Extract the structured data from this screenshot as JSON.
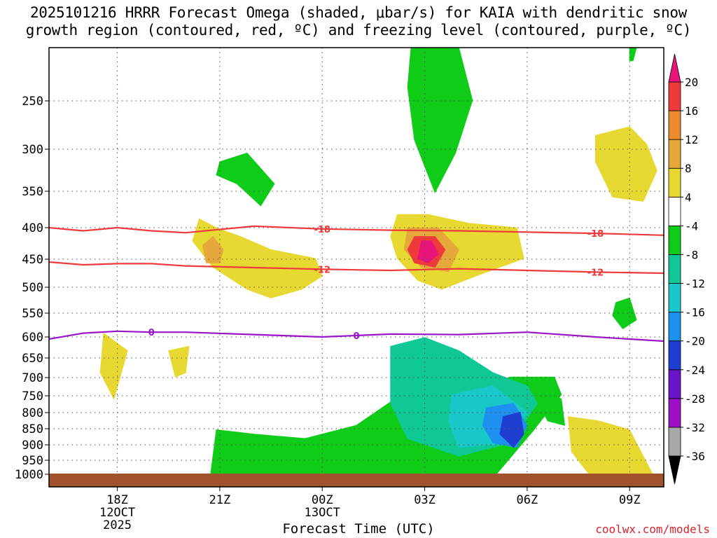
{
  "title": {
    "line1": "2025101216 HRRR Forecast Omega (shaded, μbar/s) for KAIA with dendritic snow",
    "line2": "growth region (contoured, red, ºC) and freezing level (contoured, purple, ºC)"
  },
  "chart_data": {
    "type": "time-height-contour",
    "xlabel": "Forecast Time (UTC)",
    "x_ticks": [
      {
        "hour": 18,
        "label": "18Z",
        "sub1": "12OCT",
        "sub2": "2025"
      },
      {
        "hour": 21,
        "label": "21Z",
        "sub1": "",
        "sub2": ""
      },
      {
        "hour": 24,
        "label": "00Z",
        "sub1": "13OCT",
        "sub2": ""
      },
      {
        "hour": 27,
        "label": "03Z",
        "sub1": "",
        "sub2": ""
      },
      {
        "hour": 30,
        "label": "06Z",
        "sub1": "",
        "sub2": ""
      },
      {
        "hour": 33,
        "label": "09Z",
        "sub1": "",
        "sub2": ""
      }
    ],
    "x_range_hours": [
      16,
      34
    ],
    "y_axis": "pressure (hPa)",
    "y_ticks": [
      250,
      300,
      350,
      400,
      450,
      500,
      550,
      600,
      650,
      700,
      750,
      800,
      850,
      900,
      950,
      1000
    ],
    "y_range_hpa": [
      200,
      1000
    ],
    "surface_hpa": 970,
    "colorbar": {
      "levels": [
        -36,
        -32,
        -28,
        -24,
        -20,
        -16,
        -12,
        -8,
        -4,
        4,
        8,
        12,
        16,
        20
      ],
      "colors": [
        "#000000",
        "#a8a8a8",
        "#9e0fc6",
        "#6a14c8",
        "#1e3ed2",
        "#1e90f0",
        "#18c8c8",
        "#10c896",
        "#0fcc18",
        "#ffffff",
        "#e8d832",
        "#e6a83a",
        "#ec8a2e",
        "#ee3a3a",
        "#e8147a"
      ]
    },
    "omega_regions": [
      {
        "label": "green",
        "color": "#0fcc18",
        "points": [
          [
            21.0,
            0.26
          ],
          [
            21.8,
            0.24
          ],
          [
            22.6,
            0.31
          ],
          [
            22.2,
            0.36
          ],
          [
            21.5,
            0.31
          ],
          [
            20.9,
            0.29
          ]
        ]
      },
      {
        "label": "green",
        "color": "#0fcc18",
        "points": [
          [
            26.6,
            0.0
          ],
          [
            28.0,
            0.0
          ],
          [
            28.4,
            0.12
          ],
          [
            27.9,
            0.24
          ],
          [
            27.3,
            0.33
          ],
          [
            26.7,
            0.21
          ],
          [
            26.5,
            0.09
          ]
        ]
      },
      {
        "label": "green",
        "color": "#0fcc18",
        "points": [
          [
            33.0,
            0.0
          ],
          [
            33.2,
            0.0
          ],
          [
            33.1,
            0.03
          ],
          [
            33.0,
            0.03
          ]
        ]
      },
      {
        "label": "green",
        "color": "#0fcc18",
        "points": [
          [
            20.7,
            0.99
          ],
          [
            20.9,
            0.87
          ],
          [
            22.0,
            0.88
          ],
          [
            23.5,
            0.89
          ],
          [
            25.0,
            0.86
          ],
          [
            26.5,
            0.78
          ],
          [
            28.0,
            0.79
          ],
          [
            29.5,
            0.75
          ],
          [
            30.8,
            0.75
          ],
          [
            31.0,
            0.79
          ],
          [
            30.2,
            0.87
          ],
          [
            29.0,
            0.98
          ]
        ]
      },
      {
        "label": "cyan",
        "color": "#10c896",
        "points": [
          [
            26.0,
            0.68
          ],
          [
            27.0,
            0.66
          ],
          [
            28.0,
            0.69
          ],
          [
            29.0,
            0.74
          ],
          [
            30.0,
            0.77
          ],
          [
            30.3,
            0.81
          ],
          [
            29.5,
            0.9
          ],
          [
            28.0,
            0.93
          ],
          [
            26.5,
            0.89
          ],
          [
            26.0,
            0.81
          ]
        ]
      },
      {
        "label": "teal",
        "color": "#18c8c8",
        "points": [
          [
            27.8,
            0.79
          ],
          [
            29.0,
            0.77
          ],
          [
            30.0,
            0.83
          ],
          [
            29.5,
            0.9
          ],
          [
            28.0,
            0.91
          ],
          [
            27.7,
            0.85
          ]
        ]
      },
      {
        "label": "blue",
        "color": "#1e90f0",
        "points": [
          [
            28.8,
            0.82
          ],
          [
            29.6,
            0.81
          ],
          [
            30.0,
            0.86
          ],
          [
            29.7,
            0.91
          ],
          [
            29.0,
            0.9
          ],
          [
            28.7,
            0.86
          ]
        ]
      },
      {
        "label": "dark blue",
        "color": "#1e3ed2",
        "points": [
          [
            29.3,
            0.84
          ],
          [
            29.8,
            0.83
          ],
          [
            29.9,
            0.88
          ],
          [
            29.6,
            0.91
          ],
          [
            29.2,
            0.88
          ]
        ]
      },
      {
        "label": "yellow",
        "color": "#e8d832",
        "points": [
          [
            20.4,
            0.39
          ],
          [
            20.9,
            0.41
          ],
          [
            21.6,
            0.43
          ],
          [
            22.5,
            0.46
          ],
          [
            23.8,
            0.48
          ],
          [
            24.0,
            0.52
          ],
          [
            23.4,
            0.55
          ],
          [
            22.5,
            0.57
          ],
          [
            21.8,
            0.55
          ],
          [
            20.8,
            0.5
          ],
          [
            20.2,
            0.44
          ]
        ]
      },
      {
        "label": "orange",
        "color": "#e6a83a",
        "points": [
          [
            20.8,
            0.43
          ],
          [
            21.1,
            0.46
          ],
          [
            21.0,
            0.49
          ],
          [
            20.6,
            0.49
          ],
          [
            20.5,
            0.45
          ]
        ]
      },
      {
        "label": "yellow",
        "color": "#e8d832",
        "points": [
          [
            26.2,
            0.38
          ],
          [
            27.1,
            0.38
          ],
          [
            28.3,
            0.4
          ],
          [
            29.7,
            0.41
          ],
          [
            29.9,
            0.48
          ],
          [
            28.5,
            0.52
          ],
          [
            27.5,
            0.55
          ],
          [
            26.8,
            0.53
          ],
          [
            26.2,
            0.48
          ],
          [
            26.0,
            0.43
          ]
        ]
      },
      {
        "label": "orange",
        "color": "#e6a83a",
        "points": [
          [
            26.5,
            0.41
          ],
          [
            27.4,
            0.41
          ],
          [
            28.0,
            0.46
          ],
          [
            27.7,
            0.51
          ],
          [
            26.9,
            0.5
          ],
          [
            26.4,
            0.46
          ]
        ]
      },
      {
        "label": "red",
        "color": "#ee3a3a",
        "points": [
          [
            26.7,
            0.43
          ],
          [
            27.3,
            0.43
          ],
          [
            27.6,
            0.46
          ],
          [
            27.3,
            0.5
          ],
          [
            26.7,
            0.49
          ],
          [
            26.5,
            0.46
          ]
        ]
      },
      {
        "label": "magenta",
        "color": "#e8147a",
        "points": [
          [
            26.9,
            0.44
          ],
          [
            27.2,
            0.44
          ],
          [
            27.4,
            0.47
          ],
          [
            27.1,
            0.49
          ],
          [
            26.8,
            0.48
          ]
        ]
      },
      {
        "label": "yellow",
        "color": "#e8d832",
        "points": [
          [
            32.0,
            0.2
          ],
          [
            33.0,
            0.18
          ],
          [
            33.5,
            0.22
          ],
          [
            33.8,
            0.28
          ],
          [
            33.4,
            0.35
          ],
          [
            32.5,
            0.34
          ],
          [
            32.0,
            0.26
          ]
        ]
      },
      {
        "label": "yellow",
        "color": "#e8d832",
        "points": [
          [
            31.2,
            0.84
          ],
          [
            32.1,
            0.85
          ],
          [
            33.0,
            0.87
          ],
          [
            33.8,
            0.99
          ],
          [
            32.0,
            0.99
          ],
          [
            31.3,
            0.92
          ]
        ]
      },
      {
        "label": "yellow",
        "color": "#e8d832",
        "points": [
          [
            17.6,
            0.65
          ],
          [
            18.3,
            0.69
          ],
          [
            17.9,
            0.8
          ],
          [
            17.5,
            0.74
          ]
        ]
      },
      {
        "label": "yellow",
        "color": "#e8d832",
        "points": [
          [
            19.5,
            0.69
          ],
          [
            20.1,
            0.68
          ],
          [
            20.0,
            0.74
          ],
          [
            19.7,
            0.75
          ]
        ]
      },
      {
        "label": "green",
        "color": "#0fcc18",
        "points": [
          [
            32.6,
            0.58
          ],
          [
            33.0,
            0.57
          ],
          [
            33.2,
            0.62
          ],
          [
            32.8,
            0.64
          ],
          [
            32.5,
            0.61
          ]
        ]
      },
      {
        "label": "green",
        "color": "#0fcc18",
        "points": [
          [
            30.5,
            0.78
          ],
          [
            31.0,
            0.8
          ],
          [
            31.1,
            0.86
          ],
          [
            30.6,
            0.85
          ],
          [
            30.4,
            0.82
          ]
        ]
      }
    ],
    "contours": [
      {
        "label": "-18",
        "color": "#ee3a3a",
        "hpa": [
          400,
          405,
          400,
          405,
          408,
          398,
          402,
          404,
          405,
          407,
          409,
          412
        ],
        "hours": [
          16,
          17,
          18,
          19,
          20,
          22,
          24,
          26,
          28,
          30,
          32,
          34
        ]
      },
      {
        "label": "-12",
        "color": "#ee3a3a",
        "hpa": [
          455,
          460,
          458,
          458,
          462,
          465,
          468,
          470,
          467,
          470,
          473,
          475
        ],
        "hours": [
          16,
          17,
          18,
          19,
          20,
          22,
          24,
          26,
          28,
          30,
          32,
          34
        ]
      },
      {
        "label": "0",
        "color": "#9a14c8",
        "hpa": [
          605,
          592,
          588,
          590,
          590,
          595,
          600,
          594,
          595,
          590,
          600,
          610
        ],
        "hours": [
          16,
          17,
          18,
          19,
          20,
          22,
          24,
          26,
          28,
          30,
          32,
          34
        ]
      }
    ]
  },
  "xlabel": "Forecast Time (UTC)",
  "credit": "coolwx.com/models"
}
